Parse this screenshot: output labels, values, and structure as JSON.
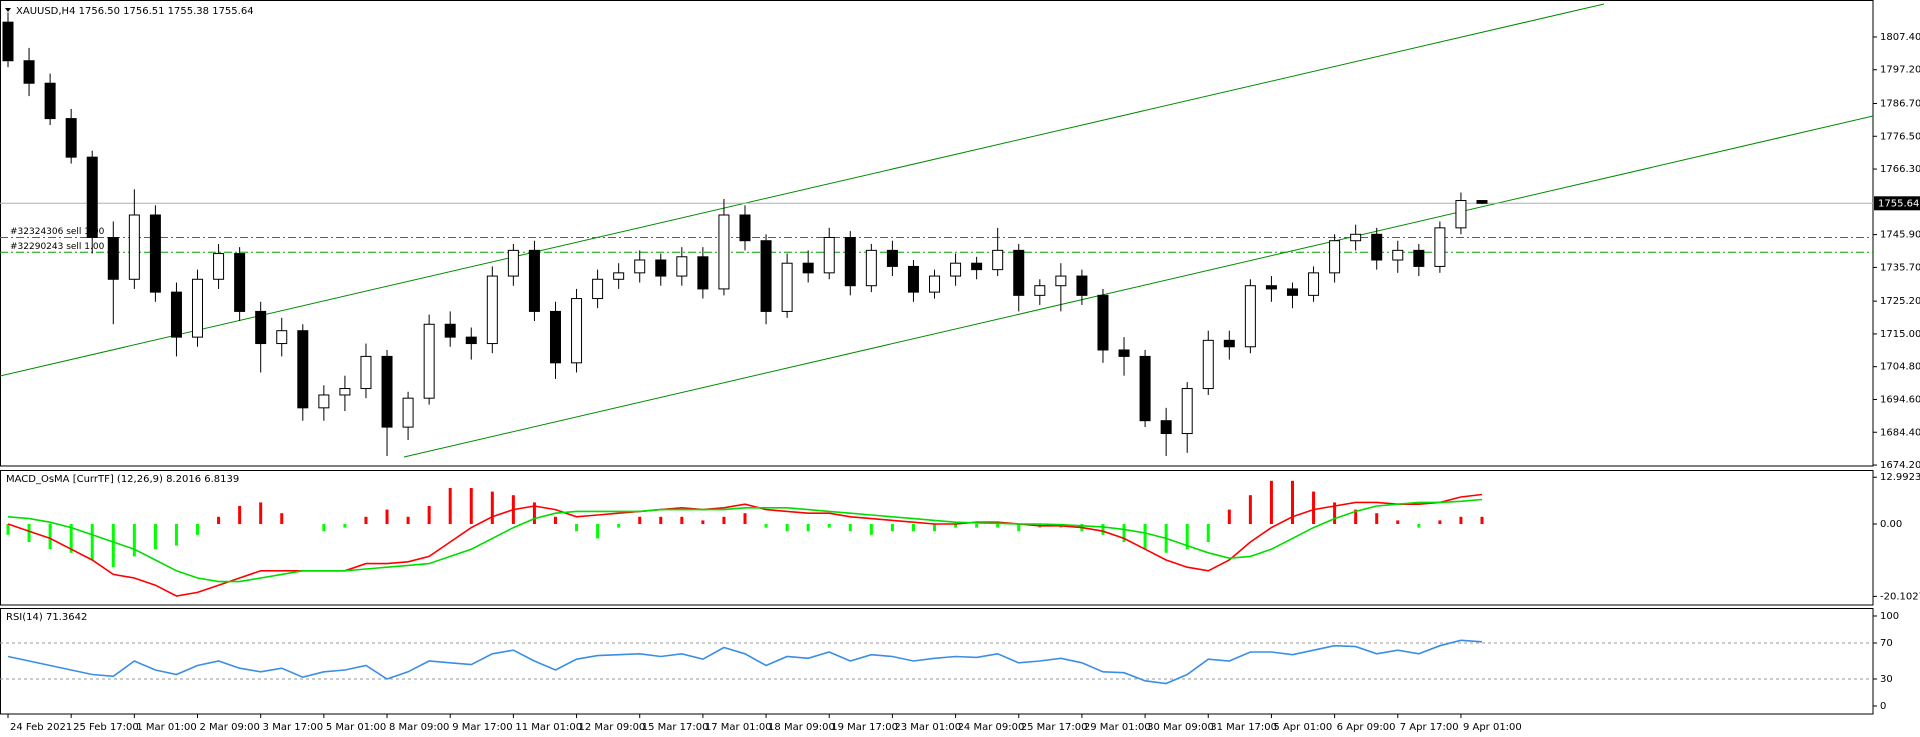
{
  "chart_data": [
    {
      "type": "candlestick",
      "title": "XAUUSD,H4  1756.50 1756.51 1755.38 1755.64",
      "categories": [
        "24 Feb 2021",
        null,
        null,
        "25 Feb 17:00",
        null,
        null,
        "1 Mar 01:00",
        null,
        null,
        "2 Mar 09:00",
        null,
        null,
        "3 Mar 17:00",
        null,
        null,
        "5 Mar 01:00",
        null,
        null,
        "8 Mar 09:00",
        null,
        null,
        "9 Mar 17:00",
        null,
        null,
        "11 Mar 01:00",
        null,
        null,
        "12 Mar 09:00",
        null,
        null,
        "15 Mar 17:00",
        null,
        null,
        "17 Mar 01:00",
        null,
        null,
        "18 Mar 09:00",
        null,
        null,
        "19 Mar 17:00",
        null,
        null,
        "23 Mar 01:00",
        null,
        null,
        "24 Mar 09:00",
        null,
        null,
        "25 Mar 17:00",
        null,
        null,
        "29 Mar 01:00",
        null,
        null,
        "30 Mar 09:00",
        null,
        null,
        "31 Mar 17:00",
        null,
        null,
        "5 Apr 01:00",
        null,
        null,
        "6 Apr 09:00",
        null,
        null,
        "7 Apr 17:00",
        null,
        null,
        "9 Apr 01:00",
        null
      ],
      "candles": [
        [
          1812,
          1815,
          1798,
          1800
        ],
        [
          1800,
          1804,
          1789,
          1793
        ],
        [
          1793,
          1796,
          1780,
          1782
        ],
        [
          1782,
          1785,
          1768,
          1770
        ],
        [
          1770,
          1772,
          1740,
          1745
        ],
        [
          1745,
          1750,
          1718,
          1732
        ],
        [
          1732,
          1760,
          1729,
          1752
        ],
        [
          1752,
          1755,
          1725,
          1728
        ],
        [
          1728,
          1731,
          1708,
          1714
        ],
        [
          1714,
          1735,
          1711,
          1732
        ],
        [
          1732,
          1743,
          1729,
          1740
        ],
        [
          1740,
          1742,
          1719,
          1722
        ],
        [
          1722,
          1725,
          1703,
          1712
        ],
        [
          1712,
          1720,
          1708,
          1716
        ],
        [
          1716,
          1718,
          1688,
          1692
        ],
        [
          1692,
          1699,
          1688,
          1696
        ],
        [
          1696,
          1702,
          1691,
          1698
        ],
        [
          1698,
          1712,
          1695,
          1708
        ],
        [
          1708,
          1710,
          1677,
          1686
        ],
        [
          1686,
          1697,
          1682,
          1695
        ],
        [
          1695,
          1721,
          1693,
          1718
        ],
        [
          1718,
          1722,
          1711,
          1714
        ],
        [
          1714,
          1717,
          1707,
          1712
        ],
        [
          1712,
          1736,
          1709,
          1733
        ],
        [
          1733,
          1743,
          1730,
          1741
        ],
        [
          1741,
          1744,
          1719,
          1722
        ],
        [
          1722,
          1725,
          1701,
          1706
        ],
        [
          1706,
          1729,
          1703,
          1726
        ],
        [
          1726,
          1735,
          1723,
          1732
        ],
        [
          1732,
          1737,
          1729,
          1734
        ],
        [
          1734,
          1741,
          1731,
          1738
        ],
        [
          1738,
          1740,
          1730,
          1733
        ],
        [
          1733,
          1742,
          1730,
          1739
        ],
        [
          1739,
          1742,
          1726,
          1729
        ],
        [
          1729,
          1757,
          1727,
          1752
        ],
        [
          1752,
          1755,
          1741,
          1744
        ],
        [
          1744,
          1746,
          1718,
          1722
        ],
        [
          1722,
          1740,
          1720,
          1737
        ],
        [
          1737,
          1741,
          1731,
          1734
        ],
        [
          1734,
          1748,
          1732,
          1745
        ],
        [
          1745,
          1747,
          1727,
          1730
        ],
        [
          1730,
          1743,
          1728,
          1741
        ],
        [
          1741,
          1744,
          1733,
          1736
        ],
        [
          1736,
          1738,
          1725,
          1728
        ],
        [
          1728,
          1735,
          1726,
          1733
        ],
        [
          1733,
          1740,
          1730,
          1737
        ],
        [
          1737,
          1739,
          1732,
          1735
        ],
        [
          1735,
          1748,
          1733,
          1741
        ],
        [
          1741,
          1743,
          1722,
          1727
        ],
        [
          1727,
          1732,
          1724,
          1730
        ],
        [
          1730,
          1737,
          1722,
          1733
        ],
        [
          1733,
          1735,
          1724,
          1727
        ],
        [
          1727,
          1729,
          1706,
          1710
        ],
        [
          1710,
          1714,
          1702,
          1708
        ],
        [
          1708,
          1710,
          1686,
          1688
        ],
        [
          1688,
          1692,
          1677,
          1684
        ],
        [
          1684,
          1700,
          1678,
          1698
        ],
        [
          1698,
          1716,
          1696,
          1713
        ],
        [
          1713,
          1716,
          1707,
          1711
        ],
        [
          1711,
          1732,
          1709,
          1730
        ],
        [
          1730,
          1733,
          1725,
          1729
        ],
        [
          1729,
          1731,
          1723,
          1727
        ],
        [
          1727,
          1736,
          1725,
          1734
        ],
        [
          1734,
          1746,
          1731,
          1744
        ],
        [
          1744,
          1749,
          1741,
          1746
        ],
        [
          1746,
          1748,
          1735,
          1738
        ],
        [
          1738,
          1744,
          1734,
          1741
        ],
        [
          1741,
          1743,
          1733,
          1736
        ],
        [
          1736,
          1750,
          1734,
          1748
        ],
        [
          1748,
          1759,
          1746,
          1756.5
        ],
        [
          1756.5,
          1756.51,
          1755.38,
          1755.64
        ]
      ],
      "up_color": "#ffffff",
      "down_color": "#000000",
      "ylim": [
        1673.9,
        1818.9
      ],
      "yticks": [
        {
          "value": 1807.4,
          "label": "1807.40"
        },
        {
          "value": 1797.2,
          "label": "1797.20"
        },
        {
          "value": 1786.7,
          "label": "1786.70"
        },
        {
          "value": 1776.5,
          "label": "1776.50"
        },
        {
          "value": 1766.3,
          "label": "1766.30"
        },
        {
          "value": 1745.9,
          "label": "1745.90"
        },
        {
          "value": 1735.7,
          "label": "1735.70"
        },
        {
          "value": 1725.2,
          "label": "1725.20"
        },
        {
          "value": 1715,
          "label": "1715.00"
        },
        {
          "value": 1704.8,
          "label": "1704.80"
        },
        {
          "value": 1694.6,
          "label": "1694.60"
        },
        {
          "value": 1684.4,
          "label": "1684.40"
        },
        {
          "value": 1674.2,
          "label": "1674.20"
        }
      ],
      "price_label": {
        "value": 1755.64,
        "label": "1755.64"
      },
      "orders": [
        {
          "label": "#32324306 sell 1.00",
          "price": 1745.0
        },
        {
          "label": "#32290243 sell 1.00",
          "price": 1740.4
        }
      ],
      "order_color": "#00a000"
    },
    {
      "type": "macd",
      "title": "MACD_OsMA [CurrTF] (12,26,9) 8.2016 6.8139",
      "histogram": {
        "values": [
          -3,
          -5,
          -7,
          -8,
          -10,
          -12,
          -9,
          -7,
          -6,
          -3,
          2,
          5,
          6,
          3,
          0,
          -2,
          -1,
          2,
          4,
          2,
          5,
          10,
          10,
          9,
          8,
          6,
          2,
          -2,
          -4,
          -1,
          2,
          2,
          2,
          1,
          2,
          3,
          -1,
          -2,
          -2,
          -1,
          -2,
          -3,
          -2,
          -2,
          -2,
          -1,
          -1,
          -1,
          -2,
          -1,
          -1,
          -2,
          -3,
          -5,
          -7,
          -8,
          -7,
          -5,
          4,
          8,
          12,
          12,
          9,
          6,
          4,
          3,
          1,
          -1,
          1,
          2,
          2
        ],
        "up_color": "#ff0000",
        "down_color": "#00ff00"
      },
      "series": [
        {
          "color": "#ff0000",
          "values": [
            0,
            -2,
            -4,
            -7,
            -10,
            -14,
            -15,
            -17,
            -20,
            -19,
            -17,
            -15,
            -13,
            -13,
            -13,
            -13,
            -13,
            -11,
            -11,
            -10.5,
            -9,
            -5,
            -1,
            2,
            4,
            5,
            4,
            2,
            2.5,
            3,
            3.5,
            4,
            4.5,
            4,
            4.5,
            5.5,
            4,
            3.5,
            3,
            3,
            2,
            1.5,
            1,
            0.5,
            0,
            0,
            0.5,
            0.5,
            0,
            -0.5,
            -0.5,
            -1,
            -2,
            -4,
            -7,
            -10,
            -12,
            -13,
            -10,
            -5,
            -1,
            2,
            4,
            5,
            6,
            6,
            5.5,
            5.5,
            6,
            7.5,
            8.2016
          ]
        },
        {
          "color": "#00dd00",
          "values": [
            2,
            1.5,
            0.5,
            -1,
            -3,
            -5,
            -7,
            -10,
            -13,
            -15,
            -16,
            -16,
            -15,
            -14,
            -13,
            -13,
            -13,
            -12.5,
            -12,
            -11.5,
            -11,
            -9,
            -7,
            -4,
            -1,
            1.5,
            3,
            3.5,
            3.5,
            3.5,
            3.5,
            4,
            4,
            4,
            4,
            4.5,
            4.5,
            4.5,
            4,
            3.5,
            3,
            2.5,
            2,
            1.5,
            1,
            0.5,
            0.3,
            0.2,
            0,
            0,
            -0.2,
            -0.5,
            -0.8,
            -1.5,
            -2.5,
            -4,
            -6,
            -8,
            -9.5,
            -9,
            -7,
            -4,
            -1,
            1.5,
            3.5,
            5,
            5.5,
            6,
            6,
            6.3,
            6.8139
          ]
        }
      ],
      "ylim": [
        -22.5,
        15
      ],
      "yticks": [
        12.9923,
        {
          "value": 0,
          "label": "0.00"
        },
        -20.1027
      ]
    },
    {
      "type": "line",
      "title": "RSI(14) 71.3642",
      "values": [
        55,
        50,
        45,
        40,
        35,
        33,
        50,
        40,
        35,
        45,
        50,
        42,
        38,
        42,
        32,
        38,
        40,
        45,
        30,
        38,
        50,
        48,
        46,
        58,
        62,
        50,
        40,
        52,
        56,
        57,
        58,
        55,
        58,
        52,
        65,
        58,
        45,
        55,
        53,
        60,
        50,
        57,
        55,
        50,
        53,
        55,
        54,
        58,
        48,
        50,
        53,
        48,
        38,
        37,
        28,
        25,
        35,
        52,
        50,
        60,
        60,
        57,
        62,
        67,
        66,
        58,
        62,
        58,
        67,
        73,
        71.3642
      ],
      "color": "#3a8ee6",
      "ylim": [
        -8.9,
        108.9
      ],
      "yticks": [
        100,
        70,
        30,
        0
      ],
      "levels": [
        70,
        30
      ]
    }
  ]
}
